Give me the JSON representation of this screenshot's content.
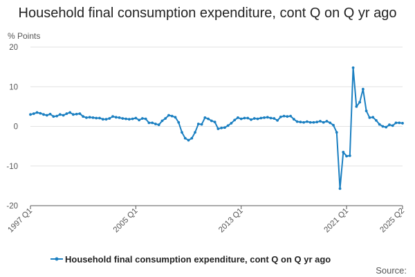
{
  "chart_data": {
    "type": "line",
    "title": "Household final consumption expenditure, cont Q on Q yr ago",
    "ylabel": "% Points",
    "ylim": [
      -20,
      20
    ],
    "yticks": [
      20,
      10,
      0,
      -10,
      -20
    ],
    "xtick_labels": [
      "1997 Q1",
      "2005 Q1",
      "2013 Q1",
      "2021 Q1",
      "2025 Q2"
    ],
    "grid": "horizontal",
    "legend_position": "bottom",
    "source_label": "Source:",
    "color": "#1a7fc1",
    "series": [
      {
        "name": "Household final consumption expenditure, cont Q on Q yr ago",
        "x": [
          "1997 Q1",
          "1997 Q2",
          "1997 Q3",
          "1997 Q4",
          "1998 Q1",
          "1998 Q2",
          "1998 Q3",
          "1998 Q4",
          "1999 Q1",
          "1999 Q2",
          "1999 Q3",
          "1999 Q4",
          "2000 Q1",
          "2000 Q2",
          "2000 Q3",
          "2000 Q4",
          "2001 Q1",
          "2001 Q2",
          "2001 Q3",
          "2001 Q4",
          "2002 Q1",
          "2002 Q2",
          "2002 Q3",
          "2002 Q4",
          "2003 Q1",
          "2003 Q2",
          "2003 Q3",
          "2003 Q4",
          "2004 Q1",
          "2004 Q2",
          "2004 Q3",
          "2004 Q4",
          "2005 Q1",
          "2005 Q2",
          "2005 Q3",
          "2005 Q4",
          "2006 Q1",
          "2006 Q2",
          "2006 Q3",
          "2006 Q4",
          "2007 Q1",
          "2007 Q2",
          "2007 Q3",
          "2007 Q4",
          "2008 Q1",
          "2008 Q2",
          "2008 Q3",
          "2008 Q4",
          "2009 Q1",
          "2009 Q2",
          "2009 Q3",
          "2009 Q4",
          "2010 Q1",
          "2010 Q2",
          "2010 Q3",
          "2010 Q4",
          "2011 Q1",
          "2011 Q2",
          "2011 Q3",
          "2011 Q4",
          "2012 Q1",
          "2012 Q2",
          "2012 Q3",
          "2012 Q4",
          "2013 Q1",
          "2013 Q2",
          "2013 Q3",
          "2013 Q4",
          "2014 Q1",
          "2014 Q2",
          "2014 Q3",
          "2014 Q4",
          "2015 Q1",
          "2015 Q2",
          "2015 Q3",
          "2015 Q4",
          "2016 Q1",
          "2016 Q2",
          "2016 Q3",
          "2016 Q4",
          "2017 Q1",
          "2017 Q2",
          "2017 Q3",
          "2017 Q4",
          "2018 Q1",
          "2018 Q2",
          "2018 Q3",
          "2018 Q4",
          "2019 Q1",
          "2019 Q2",
          "2019 Q3",
          "2019 Q4",
          "2020 Q1",
          "2020 Q2",
          "2020 Q3",
          "2020 Q4",
          "2021 Q1",
          "2021 Q2",
          "2021 Q3",
          "2021 Q4",
          "2022 Q1",
          "2022 Q2",
          "2022 Q3",
          "2022 Q4",
          "2023 Q1",
          "2023 Q2",
          "2023 Q3",
          "2023 Q4",
          "2024 Q1",
          "2024 Q2",
          "2024 Q3",
          "2024 Q4",
          "2025 Q1",
          "2025 Q2"
        ],
        "values": [
          3.0,
          3.2,
          3.5,
          3.3,
          3.0,
          2.8,
          3.1,
          2.5,
          2.6,
          3.0,
          2.8,
          3.2,
          3.5,
          3.0,
          3.1,
          3.2,
          2.5,
          2.2,
          2.3,
          2.2,
          2.1,
          2.1,
          1.8,
          1.8,
          2.0,
          2.5,
          2.3,
          2.2,
          2.0,
          1.9,
          1.8,
          1.9,
          2.1,
          1.6,
          2.0,
          1.9,
          0.9,
          0.9,
          0.6,
          0.4,
          1.4,
          2.0,
          2.8,
          2.6,
          2.3,
          1.0,
          -1.5,
          -3.0,
          -3.5,
          -3.0,
          -1.5,
          0.6,
          0.5,
          2.2,
          1.9,
          1.4,
          1.1,
          -0.6,
          -0.4,
          -0.3,
          0.2,
          0.8,
          1.6,
          2.2,
          1.9,
          2.1,
          2.1,
          1.7,
          2.0,
          1.9,
          2.1,
          2.2,
          2.3,
          2.1,
          2.0,
          1.5,
          2.4,
          2.6,
          2.5,
          2.6,
          1.8,
          1.2,
          1.1,
          1.0,
          1.2,
          1.0,
          1.0,
          1.1,
          1.3,
          1.0,
          1.3,
          0.9,
          0.3,
          -1.5,
          -15.7,
          -6.5,
          -7.5,
          -7.4,
          14.8,
          5.0,
          6.1,
          9.4,
          3.9,
          2.2,
          2.3,
          1.5,
          0.5,
          0.0,
          -0.2,
          0.4,
          0.2,
          0.9,
          0.9,
          0.8
        ]
      }
    ]
  }
}
